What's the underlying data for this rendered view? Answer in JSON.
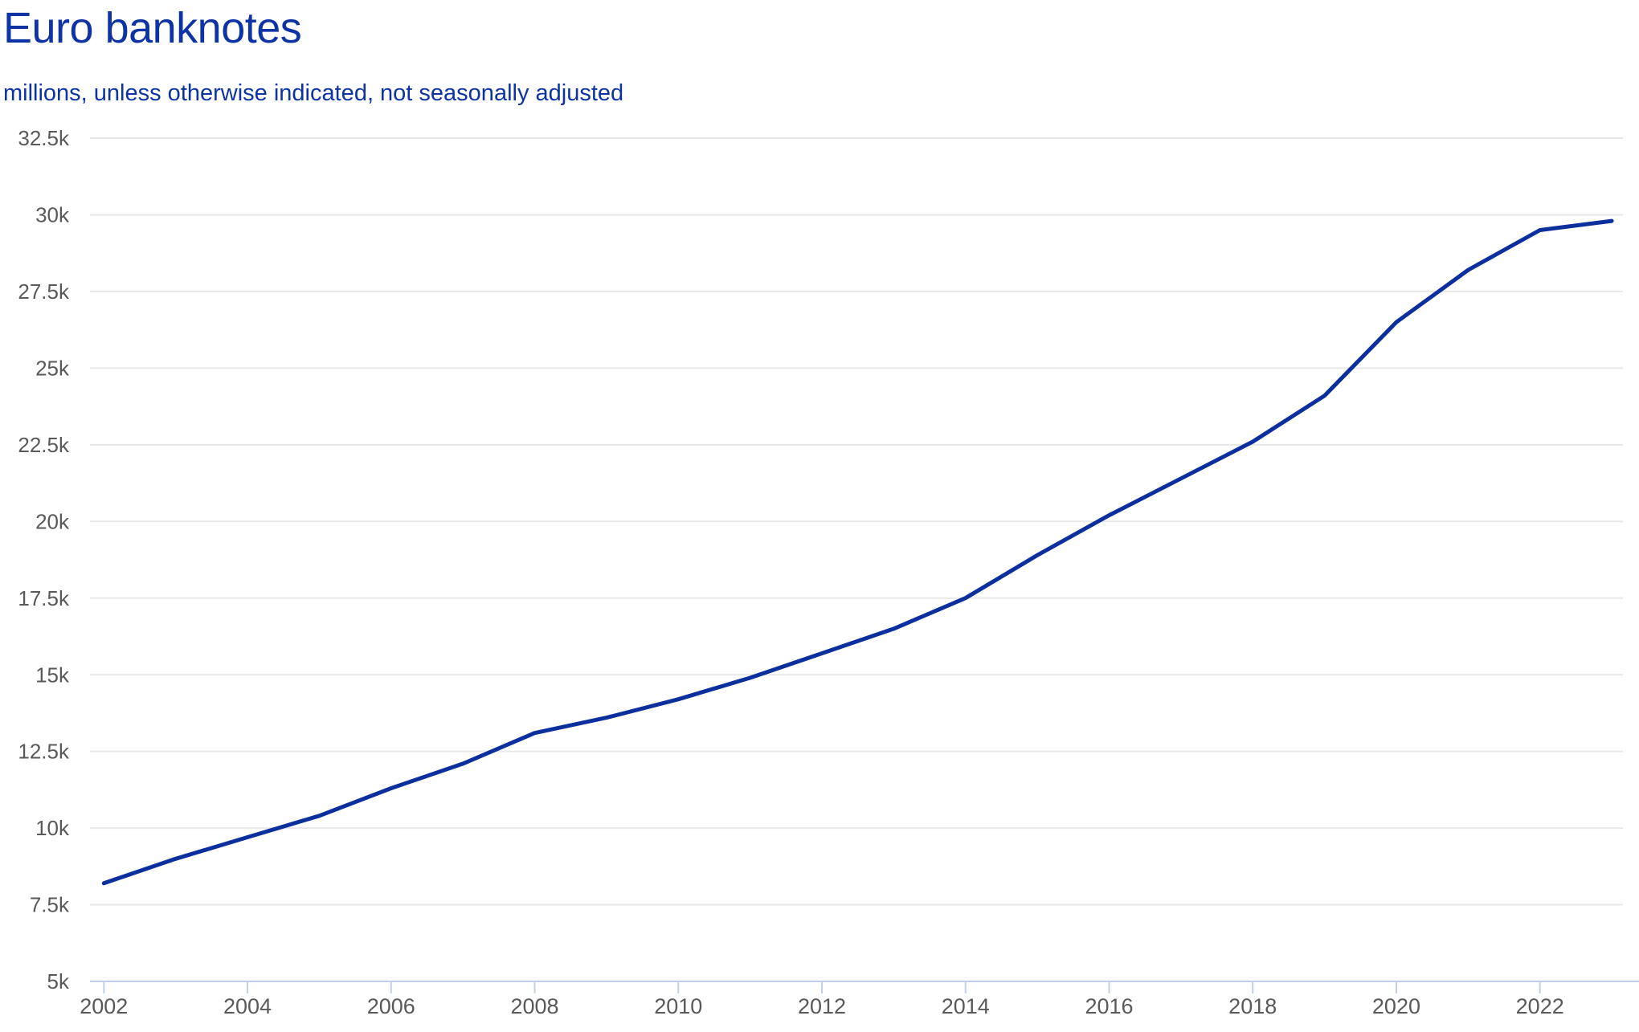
{
  "colors": {
    "title_blue": "#0d33a4",
    "line_blue": "#0c2f9e",
    "axis_text_gray": "#595959",
    "gridline_gray": "#e8e8e8",
    "axis_line_blue": "#c3cee8"
  },
  "chart_data": {
    "type": "line",
    "title": "Euro banknotes",
    "subtitle": "millions, unless otherwise indicated, not seasonally adjusted",
    "unit": "millions of banknotes",
    "x": [
      2002,
      2003,
      2004,
      2005,
      2006,
      2007,
      2008,
      2009,
      2010,
      2011,
      2012,
      2013,
      2014,
      2015,
      2016,
      2017,
      2018,
      2019,
      2020,
      2021,
      2022,
      2023
    ],
    "series": [
      {
        "name": "Euro banknotes",
        "values": [
          8200,
          9000,
          9700,
          10400,
          11300,
          12100,
          13100,
          13600,
          14200,
          14900,
          15700,
          16500,
          17500,
          18900,
          20200,
          21400,
          22600,
          24100,
          26500,
          28200,
          29500,
          29800
        ]
      }
    ],
    "ylim": [
      5000,
      32500
    ],
    "yticks": [
      {
        "value": 5000,
        "label": "5k"
      },
      {
        "value": 7500,
        "label": "7.5k"
      },
      {
        "value": 10000,
        "label": "10k"
      },
      {
        "value": 12500,
        "label": "12.5k"
      },
      {
        "value": 15000,
        "label": "15k"
      },
      {
        "value": 17500,
        "label": "17.5k"
      },
      {
        "value": 20000,
        "label": "20k"
      },
      {
        "value": 22500,
        "label": "22.5k"
      },
      {
        "value": 25000,
        "label": "25k"
      },
      {
        "value": 27500,
        "label": "27.5k"
      },
      {
        "value": 30000,
        "label": "30k"
      },
      {
        "value": 32500,
        "label": "32.5k"
      }
    ],
    "xticks": [
      {
        "value": 2002,
        "label": "2002"
      },
      {
        "value": 2004,
        "label": "2004"
      },
      {
        "value": 2006,
        "label": "2006"
      },
      {
        "value": 2008,
        "label": "2008"
      },
      {
        "value": 2010,
        "label": "2010"
      },
      {
        "value": 2012,
        "label": "2012"
      },
      {
        "value": 2014,
        "label": "2014"
      },
      {
        "value": 2016,
        "label": "2016"
      },
      {
        "value": 2018,
        "label": "2018"
      },
      {
        "value": 2020,
        "label": "2020"
      },
      {
        "value": 2022,
        "label": "2022"
      }
    ],
    "grid": "horizontal",
    "legend": "none"
  }
}
